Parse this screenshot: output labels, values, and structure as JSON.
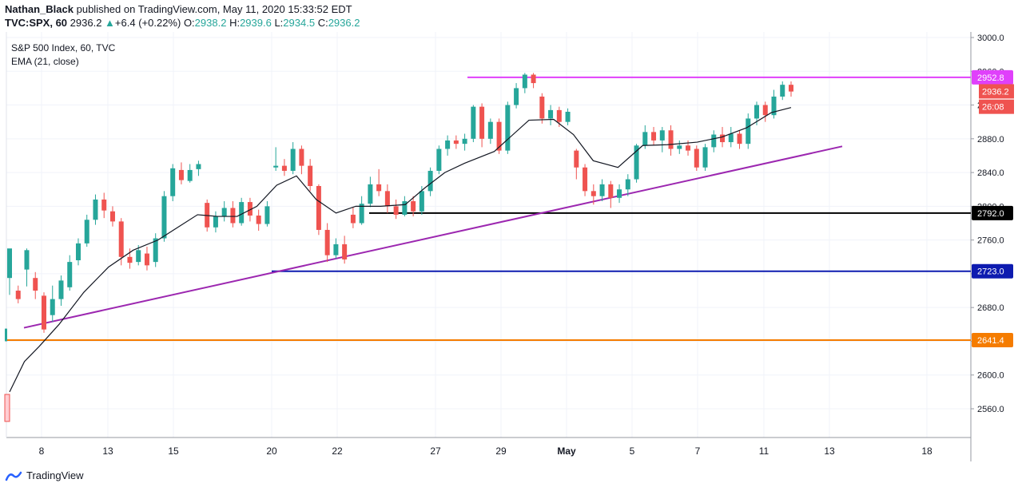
{
  "header": {
    "author": "Nathan_Black",
    "published": "published on TradingView.com, May 11, 2020 15:33:52 EDT",
    "symbol": "TVC:SPX, 60",
    "last": "2936.2",
    "change": "+6.4 (+0.22%)",
    "o_label": "O:",
    "o_value": "2938.2",
    "h_label": "H:",
    "h_value": "2939.6",
    "l_label": "L:",
    "l_value": "2934.5",
    "c_label": "C:",
    "c_value": "2936.2"
  },
  "legend": {
    "series": "S&P 500 Index, 60, TVC",
    "indicator": "EMA (21, close)"
  },
  "footer": {
    "brand": "TradingView"
  },
  "colors": {
    "up": "#26a69a",
    "down": "#ef5350",
    "ema": "#131722",
    "trend": "#9c27b0",
    "resistance": "#e040fb",
    "support_black": "#000000",
    "support_blue": "#0d1bb0",
    "support_orange": "#f57c00",
    "price_label": "#ef5350"
  },
  "chart_data": {
    "type": "candlestick",
    "yaxis": {
      "ticks": [
        3000.0,
        2960.0,
        2920.0,
        2880.0,
        2840.0,
        2800.0,
        2760.0,
        2720.0,
        2680.0,
        2640.0,
        2600.0,
        2560.0
      ],
      "ylim": [
        2543,
        3004
      ]
    },
    "xaxis": {
      "ticks": [
        "8",
        "13",
        "15",
        "20",
        "22",
        "27",
        "29",
        "May",
        "5",
        "7",
        "11",
        "13",
        "18"
      ]
    },
    "horizontal_levels": [
      {
        "value": 2952.8,
        "label": "2952.8",
        "color": "#e040fb"
      },
      {
        "value": 2792.0,
        "label": "2792.0",
        "color": "#000000"
      },
      {
        "value": 2723.0,
        "label": "2723.0",
        "color": "#0d1bb0"
      },
      {
        "value": 2641.4,
        "label": "2641.4",
        "color": "#f57c00"
      }
    ],
    "price_labels": [
      {
        "value": 2936.2,
        "label": "2936.2"
      },
      {
        "value": 2918.0,
        "label": "26:08"
      }
    ],
    "trendline": {
      "from": [
        0.5,
        2656
      ],
      "to": [
        12.6,
        2871
      ]
    },
    "ema": [
      [
        0.0,
        2580
      ],
      [
        0.3,
        2616
      ],
      [
        0.6,
        2634
      ],
      [
        1.0,
        2660
      ],
      [
        1.5,
        2698
      ],
      [
        2.0,
        2728
      ],
      [
        2.5,
        2748
      ],
      [
        3.0,
        2760
      ],
      [
        3.4,
        2775
      ],
      [
        3.8,
        2790
      ],
      [
        4.2,
        2788
      ],
      [
        4.6,
        2788
      ],
      [
        5.0,
        2800
      ],
      [
        5.4,
        2825
      ],
      [
        5.8,
        2836
      ],
      [
        6.2,
        2808
      ],
      [
        6.6,
        2792
      ],
      [
        7.0,
        2800
      ],
      [
        7.5,
        2800
      ],
      [
        8.0,
        2802
      ],
      [
        8.4,
        2822
      ],
      [
        8.8,
        2840
      ],
      [
        9.2,
        2851
      ],
      [
        9.8,
        2865
      ],
      [
        10.5,
        2902
      ],
      [
        11.0,
        2903
      ],
      [
        11.4,
        2885
      ],
      [
        11.8,
        2854
      ],
      [
        12.3,
        2846
      ],
      [
        12.8,
        2872
      ],
      [
        13.3,
        2873
      ],
      [
        13.9,
        2876
      ],
      [
        14.4,
        2882
      ],
      [
        14.9,
        2893
      ],
      [
        15.4,
        2911
      ],
      [
        15.8,
        2917
      ]
    ],
    "candles": [
      [
        2715,
        2750,
        2735,
        2695
      ],
      [
        2700,
        2690,
        2706,
        2685
      ],
      [
        2725,
        2748,
        2750,
        2705
      ],
      [
        2715,
        2700,
        2722,
        2690
      ],
      [
        2694,
        2654,
        2698,
        2650
      ],
      [
        2671,
        2690,
        2706,
        2663
      ],
      [
        2690,
        2712,
        2718,
        2682
      ],
      [
        2704,
        2734,
        2742,
        2700
      ],
      [
        2736,
        2756,
        2762,
        2730
      ],
      [
        2756,
        2784,
        2790,
        2752
      ],
      [
        2784,
        2808,
        2814,
        2778
      ],
      [
        2808,
        2795,
        2816,
        2786
      ],
      [
        2794,
        2782,
        2800,
        2776
      ],
      [
        2782,
        2740,
        2786,
        2730
      ],
      [
        2740,
        2733,
        2750,
        2726
      ],
      [
        2734,
        2748,
        2754,
        2730
      ],
      [
        2744,
        2730,
        2752,
        2724
      ],
      [
        2734,
        2762,
        2768,
        2728
      ],
      [
        2762,
        2812,
        2818,
        2758
      ],
      [
        2812,
        2845,
        2850,
        2806
      ],
      [
        2843,
        2831,
        2852,
        2826
      ],
      [
        2830,
        2843,
        2850,
        2828
      ],
      [
        2844,
        2850,
        2854,
        2836
      ],
      [
        2804,
        2775,
        2808,
        2770
      ],
      [
        2775,
        2788,
        2794,
        2769
      ],
      [
        2788,
        2798,
        2806,
        2782
      ],
      [
        2798,
        2780,
        2806,
        2775
      ],
      [
        2780,
        2805,
        2810,
        2777
      ],
      [
        2805,
        2789,
        2810,
        2782
      ],
      [
        2789,
        2779,
        2796,
        2771
      ],
      [
        2779,
        2800,
        2806,
        2776
      ],
      [
        2846,
        2848,
        2870,
        2842
      ],
      [
        2848,
        2842,
        2856,
        2836
      ],
      [
        2842,
        2868,
        2876,
        2838
      ],
      [
        2868,
        2848,
        2872,
        2838
      ],
      [
        2848,
        2824,
        2856,
        2818
      ],
      [
        2824,
        2772,
        2826,
        2766
      ],
      [
        2772,
        2742,
        2780,
        2734
      ],
      [
        2742,
        2755,
        2762,
        2738
      ],
      [
        2755,
        2737,
        2765,
        2732
      ],
      [
        2790,
        2780,
        2799,
        2774
      ],
      [
        2780,
        2803,
        2812,
        2778
      ],
      [
        2803,
        2826,
        2835,
        2799
      ],
      [
        2826,
        2818,
        2844,
        2812
      ],
      [
        2818,
        2800,
        2826,
        2792
      ],
      [
        2800,
        2790,
        2808,
        2785
      ],
      [
        2790,
        2806,
        2812,
        2788
      ],
      [
        2806,
        2794,
        2812,
        2788
      ],
      [
        2794,
        2818,
        2824,
        2790
      ],
      [
        2818,
        2842,
        2846,
        2812
      ],
      [
        2842,
        2868,
        2872,
        2838
      ],
      [
        2868,
        2878,
        2884,
        2860
      ],
      [
        2878,
        2874,
        2884,
        2868
      ],
      [
        2874,
        2880,
        2886,
        2866
      ],
      [
        2880,
        2918,
        2920,
        2876
      ],
      [
        2918,
        2880,
        2922,
        2870
      ],
      [
        2880,
        2900,
        2904,
        2874
      ],
      [
        2900,
        2866,
        2904,
        2862
      ],
      [
        2866,
        2920,
        2924,
        2862
      ],
      [
        2920,
        2940,
        2946,
        2916
      ],
      [
        2940,
        2956,
        2958,
        2934
      ],
      [
        2956,
        2946,
        2958,
        2940
      ],
      [
        2930,
        2904,
        2934,
        2898
      ],
      [
        2904,
        2914,
        2920,
        2896
      ],
      [
        2914,
        2900,
        2918,
        2894
      ],
      [
        2900,
        2912,
        2916,
        2896
      ],
      [
        2866,
        2846,
        2868,
        2832
      ],
      [
        2846,
        2818,
        2850,
        2812
      ],
      [
        2818,
        2812,
        2826,
        2802
      ],
      [
        2812,
        2826,
        2832,
        2806
      ],
      [
        2826,
        2810,
        2830,
        2798
      ],
      [
        2810,
        2820,
        2826,
        2804
      ],
      [
        2820,
        2832,
        2838,
        2812
      ],
      [
        2832,
        2872,
        2874,
        2828
      ],
      [
        2872,
        2888,
        2896,
        2868
      ],
      [
        2888,
        2878,
        2894,
        2872
      ],
      [
        2878,
        2890,
        2894,
        2864
      ],
      [
        2890,
        2868,
        2896,
        2860
      ],
      [
        2868,
        2872,
        2878,
        2862
      ],
      [
        2872,
        2866,
        2878,
        2860
      ],
      [
        2868,
        2846,
        2872,
        2842
      ],
      [
        2846,
        2870,
        2874,
        2842
      ],
      [
        2870,
        2885,
        2890,
        2864
      ],
      [
        2885,
        2876,
        2894,
        2870
      ],
      [
        2876,
        2886,
        2894,
        2870
      ],
      [
        2886,
        2874,
        2890,
        2868
      ],
      [
        2874,
        2904,
        2910,
        2868
      ],
      [
        2904,
        2920,
        2924,
        2896
      ],
      [
        2920,
        2908,
        2924,
        2900
      ],
      [
        2908,
        2930,
        2938,
        2904
      ],
      [
        2930,
        2944,
        2948,
        2926
      ],
      [
        2944,
        2936,
        2948,
        2930
      ]
    ]
  }
}
